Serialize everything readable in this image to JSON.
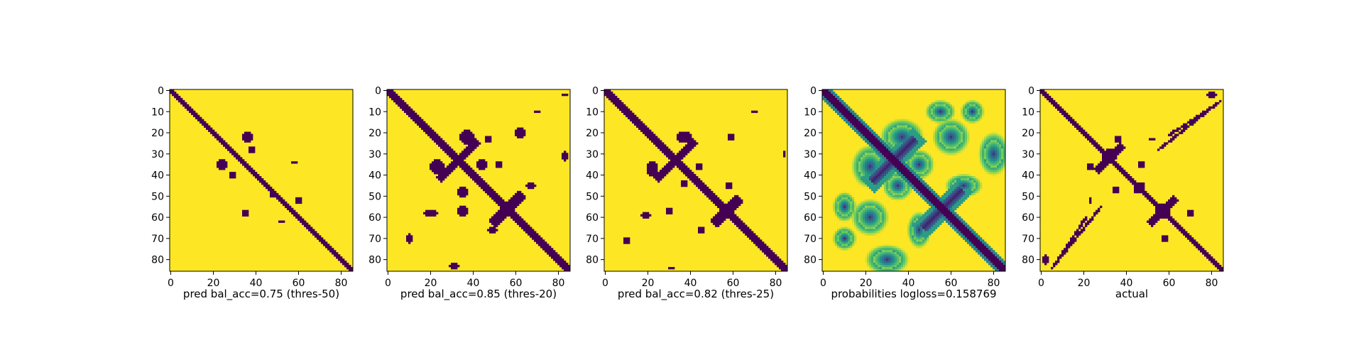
{
  "colors": {
    "background": "#ffffff",
    "low": "#440154",
    "mid": "#21918c",
    "light": "#7ad151",
    "high": "#fde725",
    "axis": "#000000"
  },
  "chart_data": [
    {
      "type": "heatmap",
      "xlabel": "pred bal_acc=0.75 (thres-50)",
      "size": 86,
      "xlim": [
        0,
        86
      ],
      "ylim": [
        0,
        86
      ],
      "xticks": [
        0,
        20,
        40,
        60,
        80
      ],
      "yticks": [
        0,
        10,
        20,
        30,
        40,
        50,
        60,
        70,
        80
      ],
      "colormap": "viridis",
      "values_range": [
        0,
        1
      ],
      "diagonal": "main",
      "diagonal_width": 3,
      "blobs": [
        {
          "x": 36,
          "y": 22,
          "rx": 2,
          "ry": 2
        },
        {
          "x": 24,
          "y": 35,
          "rx": 2,
          "ry": 2
        },
        {
          "x": 38,
          "y": 28,
          "rx": 1,
          "ry": 1
        },
        {
          "x": 29,
          "y": 40,
          "rx": 1,
          "ry": 1
        },
        {
          "x": 58,
          "y": 34,
          "rx": 1,
          "ry": 0
        },
        {
          "x": 48,
          "y": 49,
          "rx": 1,
          "ry": 1
        },
        {
          "x": 35,
          "y": 58,
          "rx": 1,
          "ry": 1
        },
        {
          "x": 60,
          "y": 52,
          "rx": 1,
          "ry": 1
        },
        {
          "x": 52,
          "y": 62,
          "rx": 1,
          "ry": 0
        }
      ],
      "antidiagonals": []
    },
    {
      "type": "heatmap",
      "xlabel": "pred bal_acc=0.85 (thres-20)",
      "size": 86,
      "xlim": [
        0,
        86
      ],
      "ylim": [
        0,
        86
      ],
      "xticks": [
        0,
        20,
        40,
        60,
        80
      ],
      "yticks": [
        0,
        10,
        20,
        30,
        40,
        50,
        60,
        70,
        80
      ],
      "colormap": "viridis",
      "values_range": [
        0,
        1
      ],
      "diagonal": "main",
      "diagonal_width": 4,
      "blobs": [
        {
          "x": 37,
          "y": 22,
          "rx": 3,
          "ry": 3
        },
        {
          "x": 47,
          "y": 23,
          "rx": 1,
          "ry": 1
        },
        {
          "x": 62,
          "y": 20,
          "rx": 2,
          "ry": 2
        },
        {
          "x": 70,
          "y": 10,
          "rx": 1,
          "ry": 0
        },
        {
          "x": 23,
          "y": 36,
          "rx": 3,
          "ry": 3
        },
        {
          "x": 44,
          "y": 35,
          "rx": 2,
          "ry": 2
        },
        {
          "x": 52,
          "y": 35,
          "rx": 1,
          "ry": 1
        },
        {
          "x": 35,
          "y": 48,
          "rx": 2,
          "ry": 2
        },
        {
          "x": 67,
          "y": 45,
          "rx": 2,
          "ry": 1
        },
        {
          "x": 20,
          "y": 58,
          "rx": 3,
          "ry": 1
        },
        {
          "x": 35,
          "y": 57,
          "rx": 2,
          "ry": 2
        },
        {
          "x": 49,
          "y": 66,
          "rx": 2,
          "ry": 1
        },
        {
          "x": 10,
          "y": 70,
          "rx": 1,
          "ry": 2
        },
        {
          "x": 31,
          "y": 83,
          "rx": 2,
          "ry": 1
        },
        {
          "x": 83,
          "y": 31,
          "rx": 1,
          "ry": 2
        },
        {
          "x": 83,
          "y": 2,
          "rx": 1,
          "ry": 0
        }
      ],
      "antidiagonals": [
        {
          "center": 33,
          "half_len": 9,
          "width": 2
        },
        {
          "center": 56,
          "half_len": 7,
          "width": 3
        }
      ]
    },
    {
      "type": "heatmap",
      "xlabel": "pred bal_acc=0.82 (thres-25)",
      "size": 86,
      "xlim": [
        0,
        86
      ],
      "ylim": [
        0,
        86
      ],
      "xticks": [
        0,
        20,
        40,
        60,
        80
      ],
      "yticks": [
        0,
        10,
        20,
        30,
        40,
        50,
        60,
        70,
        80
      ],
      "colormap": "viridis",
      "values_range": [
        0,
        1
      ],
      "diagonal": "main",
      "diagonal_width": 4,
      "blobs": [
        {
          "x": 37,
          "y": 22,
          "rx": 3,
          "ry": 2
        },
        {
          "x": 22,
          "y": 37,
          "rx": 2,
          "ry": 3
        },
        {
          "x": 59,
          "y": 22,
          "rx": 1,
          "ry": 1
        },
        {
          "x": 70,
          "y": 10,
          "rx": 1,
          "ry": 0
        },
        {
          "x": 44,
          "y": 36,
          "rx": 1,
          "ry": 1
        },
        {
          "x": 37,
          "y": 44,
          "rx": 1,
          "ry": 1
        },
        {
          "x": 58,
          "y": 45,
          "rx": 1,
          "ry": 1
        },
        {
          "x": 19,
          "y": 59,
          "rx": 2,
          "ry": 1
        },
        {
          "x": 30,
          "y": 57,
          "rx": 1,
          "ry": 1
        },
        {
          "x": 45,
          "y": 66,
          "rx": 1,
          "ry": 1
        },
        {
          "x": 10,
          "y": 71,
          "rx": 1,
          "ry": 1
        },
        {
          "x": 84,
          "y": 30,
          "rx": 0,
          "ry": 1
        },
        {
          "x": 31,
          "y": 84,
          "rx": 1,
          "ry": 0
        }
      ],
      "antidiagonals": [
        {
          "center": 33,
          "half_len": 9,
          "width": 2
        },
        {
          "center": 57,
          "half_len": 6,
          "width": 3
        }
      ]
    },
    {
      "type": "heatmap",
      "xlabel": "probabilities logloss=0.158769",
      "size": 86,
      "xlim": [
        0,
        86
      ],
      "ylim": [
        0,
        86
      ],
      "xticks": [
        0,
        20,
        40,
        60,
        80
      ],
      "yticks": [
        0,
        10,
        20,
        30,
        40,
        50,
        60,
        70,
        80
      ],
      "colormap": "viridis",
      "values_range": [
        0,
        1
      ],
      "diagonal": "main",
      "diagonal_width": 4,
      "continuous": true,
      "blobs": [
        {
          "x": 37,
          "y": 22,
          "rx": 6,
          "ry": 5
        },
        {
          "x": 22,
          "y": 36,
          "rx": 5,
          "ry": 6
        },
        {
          "x": 60,
          "y": 22,
          "rx": 5,
          "ry": 5
        },
        {
          "x": 22,
          "y": 60,
          "rx": 5,
          "ry": 5
        },
        {
          "x": 45,
          "y": 35,
          "rx": 4,
          "ry": 4
        },
        {
          "x": 35,
          "y": 45,
          "rx": 4,
          "ry": 4
        },
        {
          "x": 66,
          "y": 45,
          "rx": 5,
          "ry": 3
        },
        {
          "x": 45,
          "y": 66,
          "rx": 3,
          "ry": 5
        },
        {
          "x": 80,
          "y": 30,
          "rx": 4,
          "ry": 6
        },
        {
          "x": 30,
          "y": 80,
          "rx": 6,
          "ry": 4
        },
        {
          "x": 70,
          "y": 10,
          "rx": 3,
          "ry": 3
        },
        {
          "x": 10,
          "y": 70,
          "rx": 3,
          "ry": 3
        },
        {
          "x": 55,
          "y": 10,
          "rx": 4,
          "ry": 3
        },
        {
          "x": 10,
          "y": 55,
          "rx": 3,
          "ry": 4
        }
      ],
      "antidiagonals": [
        {
          "center": 33,
          "half_len": 10,
          "width": 3
        },
        {
          "center": 56,
          "half_len": 9,
          "width": 3
        }
      ]
    },
    {
      "type": "heatmap",
      "xlabel": "actual",
      "size": 86,
      "xlim": [
        0,
        86
      ],
      "ylim": [
        0,
        86
      ],
      "xticks": [
        0,
        20,
        40,
        60,
        80
      ],
      "yticks": [
        0,
        10,
        20,
        30,
        40,
        50,
        60,
        70,
        80
      ],
      "colormap": "viridis",
      "values_range": [
        0,
        1
      ],
      "diagonal": "main",
      "diagonal_width": 3,
      "blobs": [
        {
          "x": 32,
          "y": 31,
          "rx": 3,
          "ry": 3
        },
        {
          "x": 57,
          "y": 57,
          "rx": 3,
          "ry": 3
        },
        {
          "x": 47,
          "y": 35,
          "rx": 1,
          "ry": 1
        },
        {
          "x": 35,
          "y": 47,
          "rx": 1,
          "ry": 1
        },
        {
          "x": 52,
          "y": 23,
          "rx": 1,
          "ry": 0
        },
        {
          "x": 23,
          "y": 52,
          "rx": 0,
          "ry": 1
        },
        {
          "x": 36,
          "y": 23,
          "rx": 1,
          "ry": 1
        },
        {
          "x": 23,
          "y": 36,
          "rx": 1,
          "ry": 1
        },
        {
          "x": 45,
          "y": 47,
          "rx": 1,
          "ry": 1
        },
        {
          "x": 47,
          "y": 45,
          "rx": 1,
          "ry": 1
        },
        {
          "x": 80,
          "y": 2,
          "rx": 2,
          "ry": 1
        },
        {
          "x": 2,
          "y": 80,
          "rx": 1,
          "ry": 2
        },
        {
          "x": 70,
          "y": 58,
          "rx": 1,
          "ry": 1
        },
        {
          "x": 58,
          "y": 70,
          "rx": 1,
          "ry": 1
        }
      ],
      "antidiagonals": [
        {
          "center": 32,
          "half_len": 6,
          "width": 2
        },
        {
          "center": 57,
          "half_len": 6,
          "width": 2
        }
      ],
      "offdiagonal_lines": [
        {
          "x0": 55,
          "y0": 28,
          "x1": 84,
          "y1": 5,
          "width": 1
        },
        {
          "x0": 28,
          "y0": 55,
          "x1": 5,
          "y1": 84,
          "width": 1
        },
        {
          "x0": 60,
          "y0": 21,
          "x1": 80,
          "y1": 8,
          "width": 1
        },
        {
          "x0": 21,
          "y0": 60,
          "x1": 8,
          "y1": 80,
          "width": 1
        }
      ]
    }
  ]
}
